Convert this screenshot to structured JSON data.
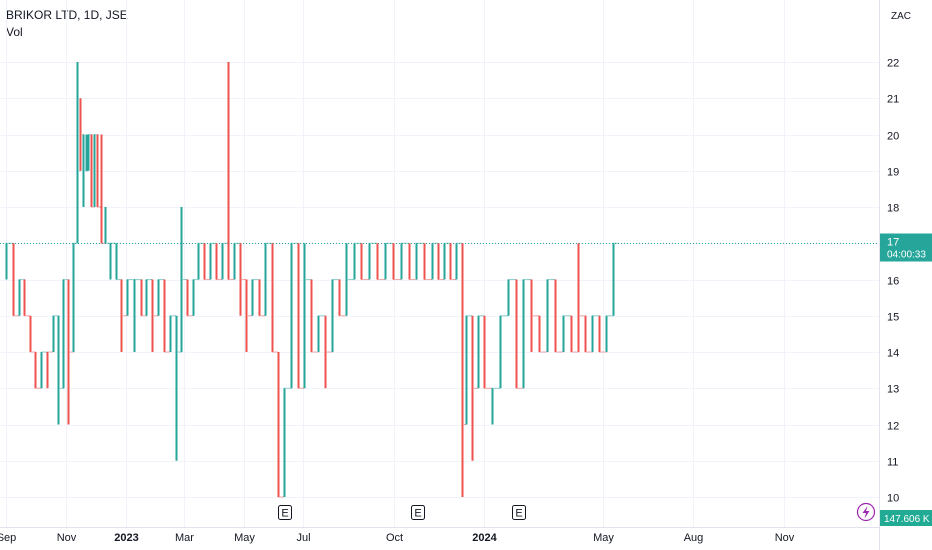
{
  "header": {
    "symbol": "BRIKOR LTD, 1D, JSE",
    "indicator": "Vol"
  },
  "currency_button": "ZAC",
  "price_badge": {
    "price": "17",
    "countdown": "04:00:33"
  },
  "volume_badge": "147.606 K",
  "event_marker": "E",
  "colors": {
    "up": "#26a69a",
    "down": "#ef5350",
    "grid": "#f0f3fa",
    "badge": "#26a69a",
    "volume_badge": "#22ab94",
    "flash_icon": "#9c27b0"
  },
  "icons": {
    "flash": "lightning-icon"
  },
  "chart_data": {
    "type": "ohlc",
    "title": "BRIKOR LTD, 1D, JSE",
    "ylabel": "",
    "xlabel": "",
    "ylim": [
      9.2,
      23.6
    ],
    "y_ticks": [
      10,
      11,
      12,
      13,
      14,
      15,
      16,
      17,
      18,
      19,
      20,
      21,
      22
    ],
    "x_ticks": [
      {
        "label": "Sep",
        "day": 0
      },
      {
        "label": "Nov",
        "day": 61
      },
      {
        "label": "2023",
        "day": 122,
        "bold": true
      },
      {
        "label": "Mar",
        "day": 181
      },
      {
        "label": "May",
        "day": 242
      },
      {
        "label": "Jul",
        "day": 303
      },
      {
        "label": "Oct",
        "day": 395
      },
      {
        "label": "2024",
        "day": 487,
        "bold": true
      },
      {
        "label": "May",
        "day": 608
      },
      {
        "label": "Aug",
        "day": 700
      },
      {
        "label": "Nov",
        "day": 792
      }
    ],
    "last_price": 17,
    "price_line": 17,
    "earnings_days": [
      284,
      420,
      522
    ],
    "segments": [
      {
        "d": 0,
        "y": [
          16,
          17,
          17
        ],
        "c": "up"
      },
      {
        "d": 7,
        "y": [
          17,
          16,
          15
        ],
        "c": "down"
      },
      {
        "d": 13,
        "y": [
          15,
          16,
          16
        ],
        "c": "up"
      },
      {
        "d": 18,
        "y": [
          16,
          15,
          15
        ],
        "c": "down"
      },
      {
        "d": 24,
        "y": [
          15,
          14,
          14
        ],
        "c": "down"
      },
      {
        "d": 30,
        "y": [
          14,
          13,
          13
        ],
        "c": "down"
      },
      {
        "d": 36,
        "y": [
          13,
          14,
          14
        ],
        "c": "up"
      },
      {
        "d": 42,
        "y": [
          14,
          13,
          14
        ],
        "c": "down"
      },
      {
        "d": 48,
        "y": [
          14,
          15,
          15
        ],
        "c": "up"
      },
      {
        "d": 53,
        "y": [
          15,
          12,
          13
        ],
        "c": "up"
      },
      {
        "d": 58,
        "y": [
          13,
          15,
          16
        ],
        "c": "up"
      },
      {
        "d": 63,
        "y": [
          16,
          12,
          14
        ],
        "c": "down"
      },
      {
        "d": 68,
        "y": [
          14,
          15,
          17
        ],
        "c": "up"
      },
      {
        "d": 72,
        "y": [
          17,
          22,
          19
        ],
        "c": "up"
      },
      {
        "d": 75,
        "y": [
          19,
          21,
          20
        ],
        "c": "down"
      },
      {
        "d": 78,
        "y": [
          20,
          18,
          19
        ],
        "c": "up"
      },
      {
        "d": 81,
        "y": [
          19,
          20,
          19
        ],
        "c": "up"
      },
      {
        "d": 84,
        "y": [
          19,
          20,
          20
        ],
        "c": "up"
      },
      {
        "d": 87,
        "y": [
          20,
          19,
          18
        ],
        "c": "down"
      },
      {
        "d": 90,
        "y": [
          18,
          20,
          20
        ],
        "c": "up"
      },
      {
        "d": 93,
        "y": [
          20,
          19,
          18
        ],
        "c": "down"
      },
      {
        "d": 97,
        "y": [
          18,
          20,
          17
        ],
        "c": "down"
      },
      {
        "d": 101,
        "y": [
          17,
          18,
          17
        ],
        "c": "up"
      },
      {
        "d": 106,
        "y": [
          17,
          16,
          17
        ],
        "c": "up"
      },
      {
        "d": 112,
        "y": [
          17,
          16,
          16
        ],
        "c": "up"
      },
      {
        "d": 117,
        "y": [
          16,
          14,
          15
        ],
        "c": "down"
      },
      {
        "d": 123,
        "y": [
          15,
          16,
          16
        ],
        "c": "up"
      },
      {
        "d": 130,
        "y": [
          16,
          14,
          16
        ],
        "c": "up"
      },
      {
        "d": 137,
        "y": [
          16,
          15,
          15
        ],
        "c": "down"
      },
      {
        "d": 143,
        "y": [
          15,
          16,
          16
        ],
        "c": "up"
      },
      {
        "d": 149,
        "y": [
          16,
          14,
          15
        ],
        "c": "down"
      },
      {
        "d": 155,
        "y": [
          15,
          16,
          16
        ],
        "c": "up"
      },
      {
        "d": 161,
        "y": [
          16,
          14,
          14
        ],
        "c": "down"
      },
      {
        "d": 167,
        "y": [
          14,
          15,
          15
        ],
        "c": "up"
      },
      {
        "d": 173,
        "y": [
          15,
          11,
          14
        ],
        "c": "up"
      },
      {
        "d": 178,
        "y": [
          14,
          18,
          16
        ],
        "c": "up"
      },
      {
        "d": 184,
        "y": [
          16,
          15,
          15
        ],
        "c": "down"
      },
      {
        "d": 190,
        "y": [
          15,
          16,
          16
        ],
        "c": "up"
      },
      {
        "d": 196,
        "y": [
          16,
          16,
          17
        ],
        "c": "up"
      },
      {
        "d": 202,
        "y": [
          17,
          16,
          16
        ],
        "c": "down"
      },
      {
        "d": 208,
        "y": [
          16,
          17,
          17
        ],
        "c": "up"
      },
      {
        "d": 214,
        "y": [
          17,
          16,
          16
        ],
        "c": "down"
      },
      {
        "d": 220,
        "y": [
          16,
          17,
          17
        ],
        "c": "up"
      },
      {
        "d": 226,
        "y": [
          17,
          22,
          16
        ],
        "c": "down"
      },
      {
        "d": 232,
        "y": [
          16,
          17,
          17
        ],
        "c": "up"
      },
      {
        "d": 238,
        "y": [
          17,
          15,
          16
        ],
        "c": "down"
      },
      {
        "d": 244,
        "y": [
          16,
          14,
          15
        ],
        "c": "down"
      },
      {
        "d": 251,
        "y": [
          15,
          16,
          16
        ],
        "c": "up"
      },
      {
        "d": 258,
        "y": [
          16,
          15,
          15
        ],
        "c": "down"
      },
      {
        "d": 264,
        "y": [
          15,
          16,
          17
        ],
        "c": "up"
      },
      {
        "d": 271,
        "y": [
          17,
          14,
          14
        ],
        "c": "down"
      },
      {
        "d": 277,
        "y": [
          14,
          10,
          10
        ],
        "c": "down"
      },
      {
        "d": 283,
        "y": [
          10,
          13,
          13
        ],
        "c": "up"
      },
      {
        "d": 290,
        "y": [
          13,
          17,
          17
        ],
        "c": "up"
      },
      {
        "d": 297,
        "y": [
          17,
          13,
          13
        ],
        "c": "down"
      },
      {
        "d": 304,
        "y": [
          13,
          17,
          16
        ],
        "c": "up"
      },
      {
        "d": 311,
        "y": [
          16,
          14,
          14
        ],
        "c": "down"
      },
      {
        "d": 318,
        "y": [
          14,
          15,
          15
        ],
        "c": "up"
      },
      {
        "d": 325,
        "y": [
          15,
          13,
          14
        ],
        "c": "down"
      },
      {
        "d": 332,
        "y": [
          14,
          16,
          16
        ],
        "c": "up"
      },
      {
        "d": 339,
        "y": [
          16,
          15,
          15
        ],
        "c": "down"
      },
      {
        "d": 346,
        "y": [
          15,
          17,
          16
        ],
        "c": "up"
      },
      {
        "d": 354,
        "y": [
          16,
          17,
          17
        ],
        "c": "up"
      },
      {
        "d": 362,
        "y": [
          17,
          16,
          16
        ],
        "c": "down"
      },
      {
        "d": 370,
        "y": [
          16,
          17,
          17
        ],
        "c": "up"
      },
      {
        "d": 378,
        "y": [
          17,
          16,
          16
        ],
        "c": "down"
      },
      {
        "d": 386,
        "y": [
          16,
          17,
          17
        ],
        "c": "up"
      },
      {
        "d": 394,
        "y": [
          17,
          16,
          16
        ],
        "c": "down"
      },
      {
        "d": 402,
        "y": [
          16,
          17,
          17
        ],
        "c": "up"
      },
      {
        "d": 410,
        "y": [
          17,
          16,
          16
        ],
        "c": "down"
      },
      {
        "d": 418,
        "y": [
          16,
          17,
          17
        ],
        "c": "up"
      },
      {
        "d": 426,
        "y": [
          17,
          16,
          16
        ],
        "c": "down"
      },
      {
        "d": 434,
        "y": [
          16,
          17,
          17
        ],
        "c": "up"
      },
      {
        "d": 440,
        "y": [
          17,
          16,
          16
        ],
        "c": "down"
      },
      {
        "d": 446,
        "y": [
          16,
          17,
          17
        ],
        "c": "up"
      },
      {
        "d": 452,
        "y": [
          17,
          16,
          16
        ],
        "c": "down"
      },
      {
        "d": 458,
        "y": [
          16,
          17,
          17
        ],
        "c": "up"
      },
      {
        "d": 464,
        "y": [
          17,
          10,
          12
        ],
        "c": "down"
      },
      {
        "d": 469,
        "y": [
          12,
          15,
          15
        ],
        "c": "up"
      },
      {
        "d": 475,
        "y": [
          15,
          11,
          13
        ],
        "c": "down"
      },
      {
        "d": 481,
        "y": [
          13,
          15,
          15
        ],
        "c": "up"
      },
      {
        "d": 487,
        "y": [
          15,
          13,
          13
        ],
        "c": "down"
      },
      {
        "d": 495,
        "y": [
          13,
          12,
          13
        ],
        "c": "up"
      },
      {
        "d": 503,
        "y": [
          13,
          15,
          15
        ],
        "c": "up"
      },
      {
        "d": 511,
        "y": [
          15,
          16,
          16
        ],
        "c": "up"
      },
      {
        "d": 519,
        "y": [
          16,
          13,
          13
        ],
        "c": "down"
      },
      {
        "d": 527,
        "y": [
          13,
          16,
          16
        ],
        "c": "up"
      },
      {
        "d": 535,
        "y": [
          16,
          14,
          15
        ],
        "c": "down"
      },
      {
        "d": 543,
        "y": [
          15,
          14,
          14
        ],
        "c": "down"
      },
      {
        "d": 551,
        "y": [
          14,
          16,
          16
        ],
        "c": "up"
      },
      {
        "d": 559,
        "y": [
          16,
          14,
          14
        ],
        "c": "down"
      },
      {
        "d": 567,
        "y": [
          14,
          15,
          15
        ],
        "c": "up"
      },
      {
        "d": 575,
        "y": [
          15,
          14,
          14
        ],
        "c": "down"
      },
      {
        "d": 583,
        "y": [
          14,
          17,
          15
        ],
        "c": "down"
      },
      {
        "d": 590,
        "y": [
          15,
          14,
          14
        ],
        "c": "down"
      },
      {
        "d": 597,
        "y": [
          14,
          15,
          15
        ],
        "c": "up"
      },
      {
        "d": 604,
        "y": [
          15,
          14,
          14
        ],
        "c": "down"
      },
      {
        "d": 611,
        "y": [
          14,
          15,
          15
        ],
        "c": "up"
      },
      {
        "d": 618,
        "y": [
          15,
          16,
          17
        ],
        "c": "up"
      }
    ]
  }
}
